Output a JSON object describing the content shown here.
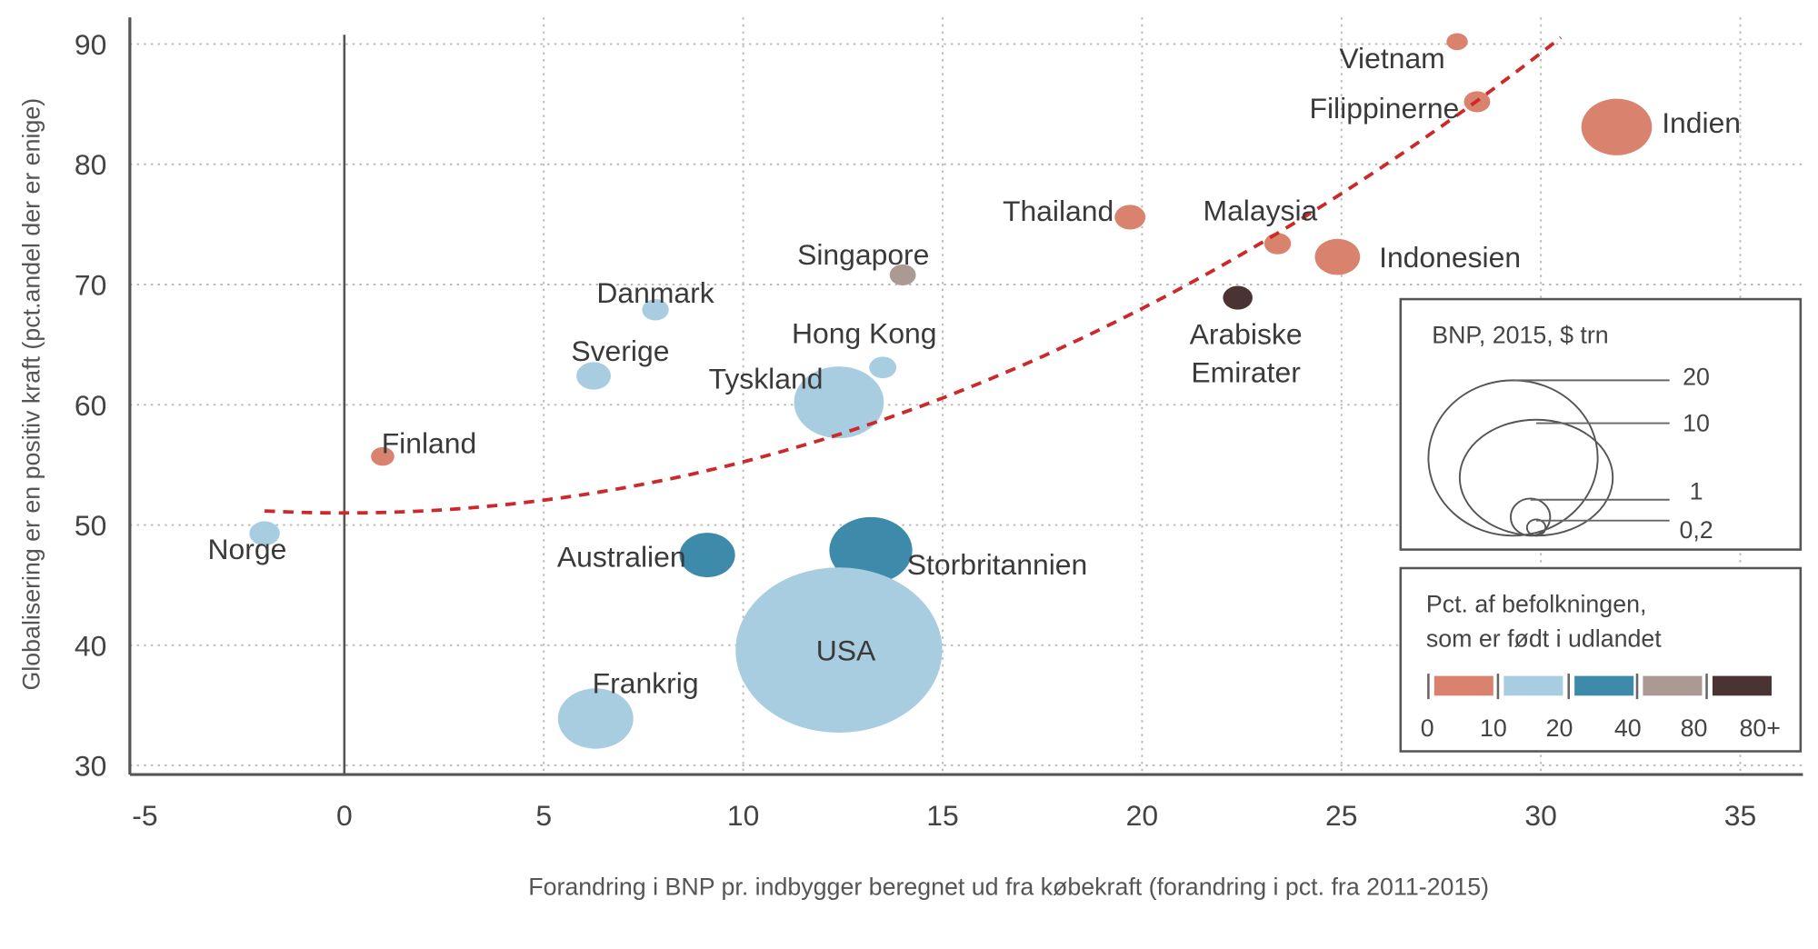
{
  "chart_data": {
    "type": "scatter",
    "subtype": "bubble",
    "xlabel": "Forandring i BNP pr. indbygger beregnet ud fra købekraft (forandring i pct. fra 2011-2015)",
    "ylabel": "Globalisering er en positiv kraft (pct.andel der er enige)",
    "xlim": [
      -5.4,
      36.6
    ],
    "ylim": [
      29.2,
      92
    ],
    "x_ticks": [
      "-5",
      "0",
      "5",
      "10",
      "15",
      "20",
      "25",
      "30",
      "35"
    ],
    "y_ticks": [
      "30",
      "40",
      "50",
      "60",
      "70",
      "80",
      "90"
    ],
    "grid": true,
    "trendline": {
      "style": "dashed",
      "color": "#cc2a2a",
      "shape": "curved-upward",
      "x_range": [
        -2,
        30.5
      ],
      "y_range": [
        51.2,
        90.5
      ]
    },
    "points": [
      {
        "name": "Vietnam",
        "x": 27.9,
        "y": 90.2,
        "gdp": 0.19,
        "color": "#d9826e"
      },
      {
        "name": "Filippinerne",
        "x": 28.4,
        "y": 85.2,
        "gdp": 0.29,
        "color": "#d9826e"
      },
      {
        "name": "Indien",
        "x": 31.9,
        "y": 83.1,
        "gdp": 2.1,
        "color": "#d9826e"
      },
      {
        "name": "Thailand",
        "x": 19.7,
        "y": 75.6,
        "gdp": 0.4,
        "color": "#d9826e"
      },
      {
        "name": "Malaysia",
        "x": 23.4,
        "y": 73.4,
        "gdp": 0.3,
        "color": "#d9826e"
      },
      {
        "name": "Indonesien",
        "x": 24.9,
        "y": 72.3,
        "gdp": 0.86,
        "color": "#d9826e"
      },
      {
        "name": "Arabiske Emirater",
        "lines": [
          "Arabiske",
          "Emirater"
        ],
        "x": 22.4,
        "y": 68.9,
        "gdp": 0.37,
        "color": "#4a3433"
      },
      {
        "name": "Singapore",
        "x": 14.0,
        "y": 70.8,
        "gdp": 0.29,
        "color": "#ab9993"
      },
      {
        "name": "Danmark",
        "x": 7.8,
        "y": 67.9,
        "gdp": 0.3,
        "color": "#a9cde0"
      },
      {
        "name": "Sverige",
        "x": 6.25,
        "y": 62.4,
        "gdp": 0.5,
        "color": "#a9cde0"
      },
      {
        "name": "Hong Kong",
        "x": 13.5,
        "y": 63.1,
        "gdp": 0.31,
        "color": "#a9cde0"
      },
      {
        "name": "Tyskland",
        "x": 12.4,
        "y": 60.2,
        "gdp": 3.4,
        "color": "#a9cde0"
      },
      {
        "name": "Finland",
        "x": 0.96,
        "y": 55.7,
        "gdp": 0.23,
        "color": "#d9826e"
      },
      {
        "name": "Norge",
        "x": -2.0,
        "y": 49.3,
        "gdp": 0.39,
        "color": "#a9cde0"
      },
      {
        "name": "Australien",
        "x": 9.1,
        "y": 47.5,
        "gdp": 1.3,
        "color": "#3e8aab"
      },
      {
        "name": "Storbritannien",
        "x": 13.2,
        "y": 47.9,
        "gdp": 2.9,
        "color": "#3e8aab"
      },
      {
        "name": "USA",
        "x": 12.4,
        "y": 39.6,
        "gdp": 18,
        "color": "#a9cde0"
      },
      {
        "name": "Frankrig",
        "x": 6.3,
        "y": 33.9,
        "gdp": 2.4,
        "color": "#a9cde0"
      }
    ],
    "size_legend": {
      "title": "BNP, 2015, $ trn",
      "values": [
        "20",
        "10",
        "1",
        "0,2"
      ]
    },
    "color_legend": {
      "title_lines": [
        "Pct. af befolkningen,",
        "som er født i udlandet"
      ],
      "bins": [
        "0",
        "10",
        "20",
        "40",
        "80",
        "80+"
      ],
      "colors": [
        "#d9826e",
        "#a9cde0",
        "#3e8aab",
        "#ab9993",
        "#4a3433"
      ]
    }
  }
}
